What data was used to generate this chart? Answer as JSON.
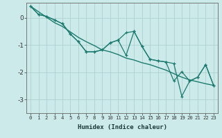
{
  "xlabel": "Humidex (Indice chaleur)",
  "background_color": "#cdeaea",
  "grid_color": "#aed0d0",
  "line_color": "#1a7a6e",
  "xlim": [
    -0.5,
    23.5
  ],
  "ylim": [
    -3.5,
    0.55
  ],
  "yticks": [
    0,
    -1,
    -2,
    -3
  ],
  "xticks": [
    0,
    1,
    2,
    3,
    4,
    5,
    6,
    7,
    8,
    9,
    10,
    11,
    12,
    13,
    14,
    15,
    16,
    17,
    18,
    19,
    20,
    21,
    22,
    23
  ],
  "series1": [
    0.42,
    0.12,
    0.05,
    -0.08,
    -0.22,
    -0.6,
    -0.88,
    -1.25,
    -1.25,
    -1.18,
    -0.92,
    -0.82,
    -0.55,
    -0.5,
    -1.05,
    -1.52,
    -1.58,
    -1.62,
    -1.68,
    -2.88,
    -2.32,
    -2.18,
    -1.72,
    -2.48
  ],
  "series2": [
    0.42,
    0.12,
    0.05,
    -0.08,
    -0.22,
    -0.6,
    -0.88,
    -1.25,
    -1.25,
    -1.18,
    -0.92,
    -0.82,
    -1.38,
    -0.5,
    -1.05,
    -1.52,
    -1.58,
    -1.62,
    -2.32,
    -1.98,
    -2.32,
    -2.18,
    -1.72,
    -2.48
  ],
  "trend": [
    0.42,
    0.22,
    0.02,
    -0.18,
    -0.32,
    -0.52,
    -0.72,
    -0.88,
    -1.02,
    -1.18,
    -1.25,
    -1.35,
    -1.48,
    -1.55,
    -1.65,
    -1.72,
    -1.82,
    -1.92,
    -2.05,
    -2.18,
    -2.28,
    -2.35,
    -2.42,
    -2.48
  ]
}
